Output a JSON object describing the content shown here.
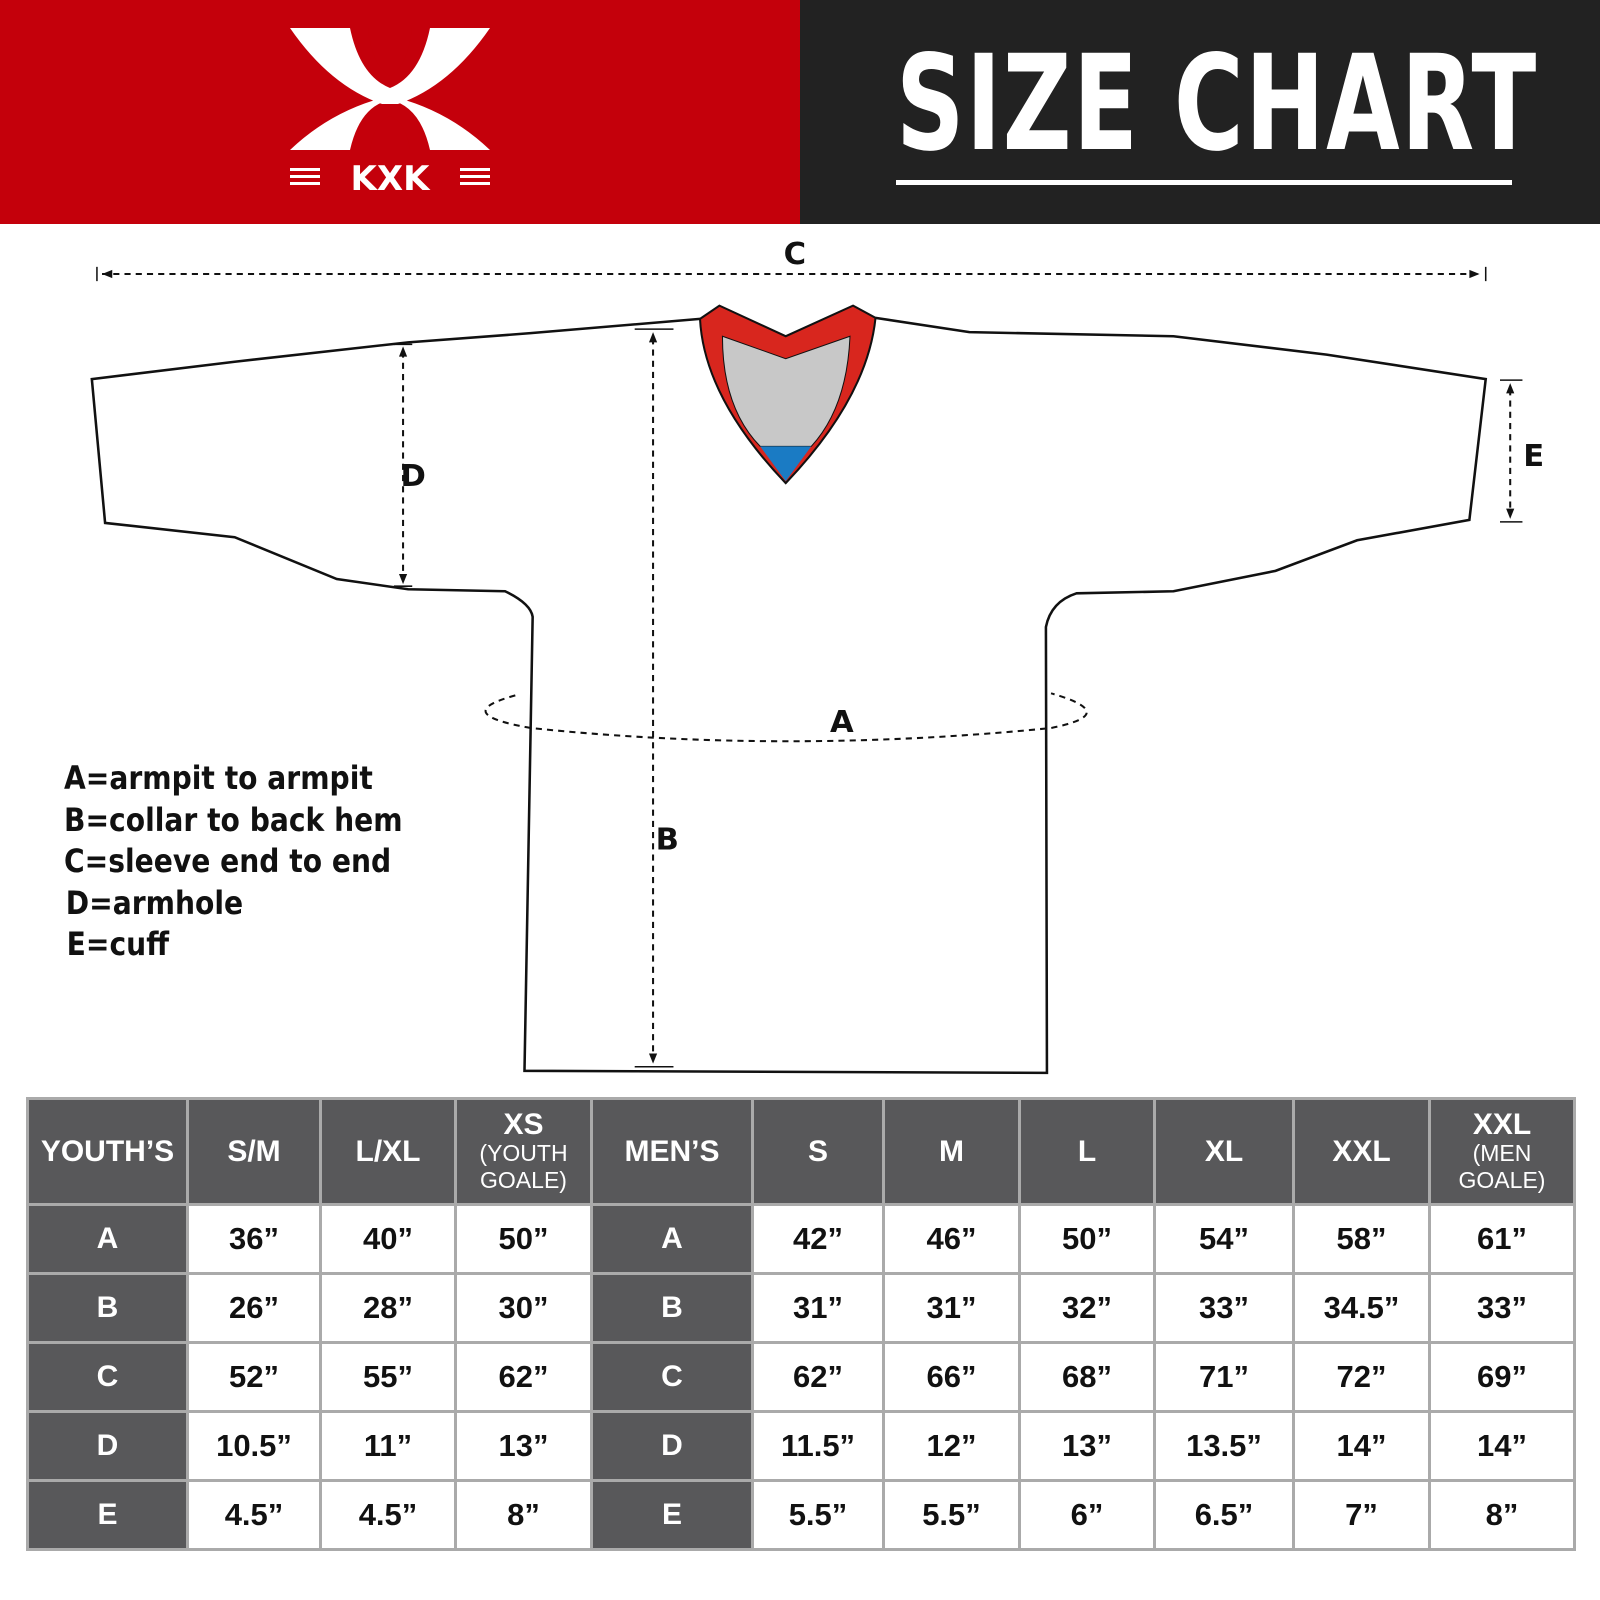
{
  "brand": {
    "name": "KXK",
    "colors": {
      "red": "#c4000b",
      "dark": "#222222",
      "table_header": "#58585a"
    }
  },
  "title": "SIZE CHART",
  "diagram": {
    "labels": {
      "a": "A",
      "b": "B",
      "c": "C",
      "d": "D",
      "e": "E"
    },
    "collar_colors": [
      "#d8261e",
      "#c8c8c8",
      "#1a7bc4"
    ]
  },
  "legend": [
    "A=armpit to armpit",
    "B=collar to back hem",
    "C=sleeve end to end",
    "D=armhole",
    "E=cuff"
  ],
  "table": {
    "youth_header": "YOUTH’S",
    "youth_sizes": [
      {
        "main": "S/M"
      },
      {
        "main": "L/XL"
      },
      {
        "main": "XS",
        "sub": "(YOUTH GOALE)"
      }
    ],
    "men_header": "MEN’S",
    "men_sizes": [
      {
        "main": "S"
      },
      {
        "main": "M"
      },
      {
        "main": "L"
      },
      {
        "main": "XL"
      },
      {
        "main": "XXL"
      },
      {
        "main": "XXL",
        "sub": "(MEN GOALE)"
      }
    ],
    "rows": [
      {
        "label": "A",
        "youth": [
          "36”",
          "40”",
          "50”"
        ],
        "men": [
          "42”",
          "46”",
          "50”",
          "54”",
          "58”",
          "61”"
        ]
      },
      {
        "label": "B",
        "youth": [
          "26”",
          "28”",
          "30”"
        ],
        "men": [
          "31”",
          "31”",
          "32”",
          "33”",
          "34.5”",
          "33”"
        ]
      },
      {
        "label": "C",
        "youth": [
          "52”",
          "55”",
          "62”"
        ],
        "men": [
          "62”",
          "66”",
          "68”",
          "71”",
          "72”",
          "69”"
        ]
      },
      {
        "label": "D",
        "youth": [
          "10.5”",
          "11”",
          "13”"
        ],
        "men": [
          "11.5”",
          "12”",
          "13”",
          "13.5”",
          "14”",
          "14”"
        ]
      },
      {
        "label": "E",
        "youth": [
          "4.5”",
          "4.5”",
          "8”"
        ],
        "men": [
          "5.5”",
          "5.5”",
          "6”",
          "6.5”",
          "7”",
          "8”"
        ]
      }
    ]
  }
}
